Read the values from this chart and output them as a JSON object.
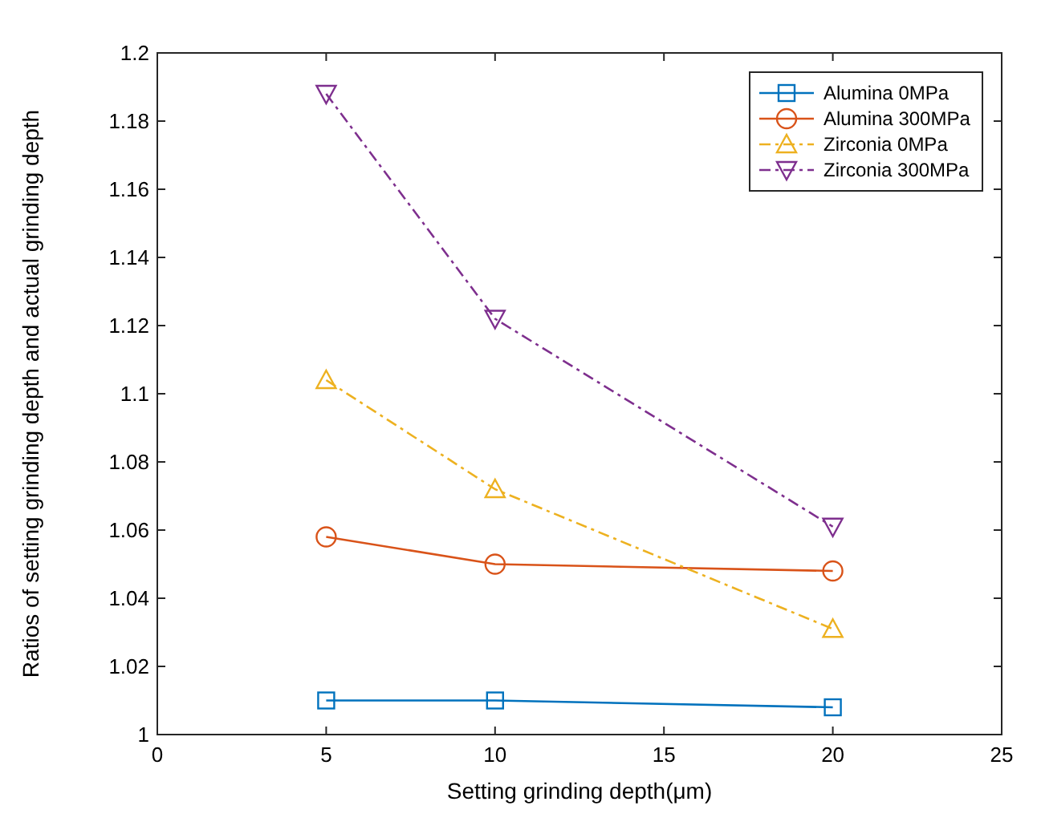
{
  "chart_data": {
    "type": "line",
    "xlabel": "Setting grinding depth(μm)",
    "ylabel": "Ratios of setting grinding depth and actual grinding depth",
    "x": [
      5,
      10,
      20
    ],
    "xlim": [
      0,
      25
    ],
    "xticks": [
      0,
      5,
      10,
      15,
      20,
      25
    ],
    "ylim": [
      1,
      1.2
    ],
    "yticks": [
      1,
      1.02,
      1.04,
      1.06,
      1.08,
      1.1,
      1.12,
      1.14,
      1.16,
      1.18,
      1.2
    ],
    "grid": false,
    "legend": "top right",
    "series": [
      {
        "name": "Alumina 0MPa",
        "color": "#0072bd",
        "values": [
          1.01,
          1.01,
          1.008
        ],
        "marker": "square",
        "line_style": "solid"
      },
      {
        "name": "Alumina 300MPa",
        "color": "#d95319",
        "values": [
          1.058,
          1.05,
          1.048
        ],
        "marker": "circle",
        "line_style": "solid"
      },
      {
        "name": "Zirconia 0MPa",
        "color": "#edb120",
        "values": [
          1.104,
          1.072,
          1.031
        ],
        "marker": "triangle",
        "line_style": "dashed"
      },
      {
        "name": "Zirconia 300MPa",
        "color": "#7e2f8e",
        "values": [
          1.188,
          1.122,
          1.061
        ],
        "marker": "triangle-down",
        "line_style": "dashed"
      }
    ]
  }
}
